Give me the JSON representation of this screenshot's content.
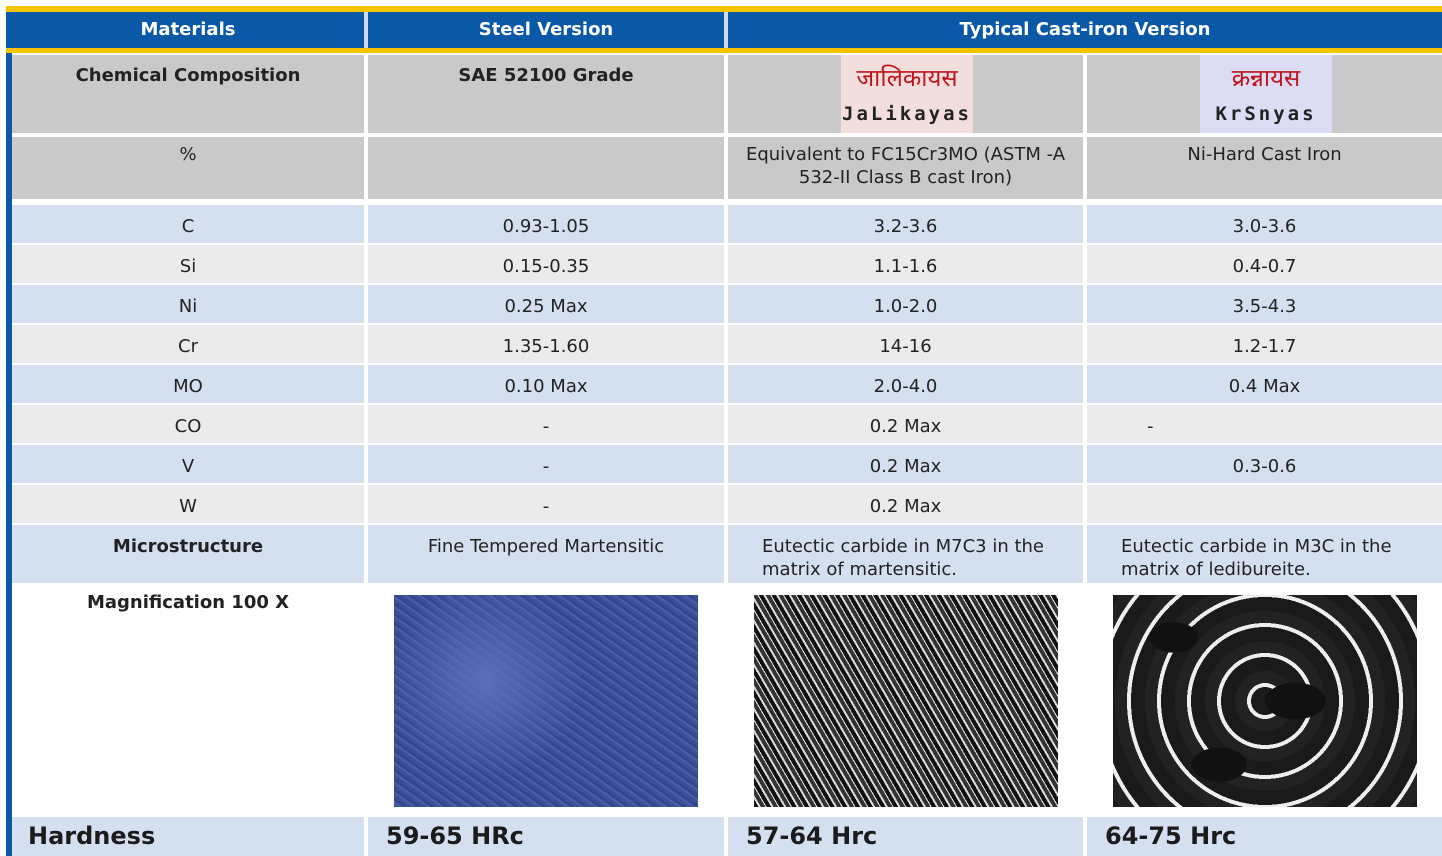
{
  "header": {
    "materials": "Materials",
    "steel": "Steel Version",
    "cast_iron": "Typical Cast-iron Version"
  },
  "table": {
    "rows": [
      [
        "Chemical Composition",
        "SAE 52100 Grade",
        {
          "script": "जालिकायस",
          "latin": "JaLikayas"
        },
        {
          "script": "क्रन्नायस",
          "latin": "KrSnyas"
        }
      ],
      [
        "%",
        null,
        "Equivalent to FC15Cr3MO (ASTM -A 532-II Class B cast Iron)",
        "Ni-Hard Cast Iron"
      ],
      [
        "C",
        "0.93-1.05",
        "3.2-3.6",
        "3.0-3.6"
      ],
      [
        "Si",
        "0.15-0.35",
        "1.1-1.6",
        "0.4-0.7"
      ],
      [
        "Ni",
        "0.25 Max",
        "1.0-2.0",
        "3.5-4.3"
      ],
      [
        "Cr",
        "1.35-1.60",
        "14-16",
        "1.2-1.7"
      ],
      [
        "MO",
        "0.10 Max",
        "2.0-4.0",
        "0.4 Max"
      ],
      [
        "CO",
        "-",
        "0.2 Max",
        "-"
      ],
      [
        "V",
        "-",
        "0.2 Max",
        "0.3-0.6"
      ],
      [
        "W",
        "-",
        "0.2 Max",
        null
      ],
      [
        "Microstructure",
        "Fine Tempered Martensitic",
        "Eutectic carbide in M7C3 in the matrix of martensitic.",
        "Eutectic carbide in M3C in the matrix of ledibureite."
      ],
      [
        "Magnification 100 X",
        null,
        null,
        null
      ],
      [
        "Hardness",
        "59-65 HRc",
        "57-64 Hrc",
        "64-75 Hrc"
      ]
    ]
  }
}
